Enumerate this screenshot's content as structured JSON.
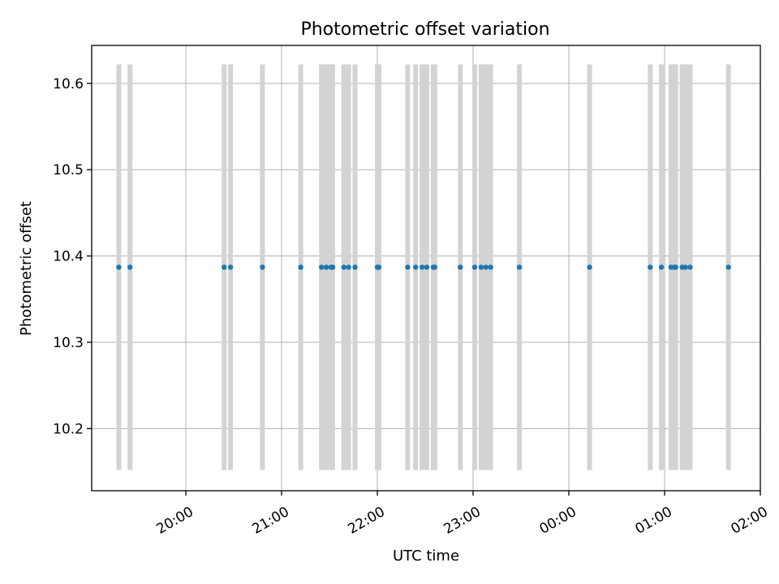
{
  "chart_data": {
    "type": "scatter",
    "title": "Photometric offset variation",
    "xlabel": "UTC time",
    "ylabel": "Photometric offset",
    "x_ticks": [
      "20:00",
      "21:00",
      "22:00",
      "23:00",
      "00:00",
      "01:00",
      "02:00"
    ],
    "y_ticks": [
      "10.2",
      "10.3",
      "10.4",
      "10.5",
      "10.6"
    ],
    "x_range_minutes_from_2000": [
      -59,
      360
    ],
    "ylim": [
      10.128,
      10.644
    ],
    "grid": true,
    "series": [
      {
        "marker_color": "#1f77b4",
        "errorbar_color": "#d3d3d3",
        "points": [
          {
            "t": "19:18",
            "y": 10.387,
            "ylow": 10.152,
            "yhigh": 10.622
          },
          {
            "t": "19:25",
            "y": 10.387,
            "ylow": 10.152,
            "yhigh": 10.622
          },
          {
            "t": "20:24",
            "y": 10.387,
            "ylow": 10.152,
            "yhigh": 10.622
          },
          {
            "t": "20:28",
            "y": 10.387,
            "ylow": 10.152,
            "yhigh": 10.622
          },
          {
            "t": "20:48",
            "y": 10.387,
            "ylow": 10.152,
            "yhigh": 10.622
          },
          {
            "t": "21:12",
            "y": 10.387,
            "ylow": 10.152,
            "yhigh": 10.622
          },
          {
            "t": "21:25",
            "y": 10.387,
            "ylow": 10.152,
            "yhigh": 10.622
          },
          {
            "t": "21:28",
            "y": 10.387,
            "ylow": 10.152,
            "yhigh": 10.622
          },
          {
            "t": "21:31",
            "y": 10.387,
            "ylow": 10.152,
            "yhigh": 10.622
          },
          {
            "t": "21:32",
            "y": 10.387,
            "ylow": 10.152,
            "yhigh": 10.622
          },
          {
            "t": "21:39",
            "y": 10.387,
            "ylow": 10.152,
            "yhigh": 10.622
          },
          {
            "t": "21:42",
            "y": 10.387,
            "ylow": 10.152,
            "yhigh": 10.622
          },
          {
            "t": "21:46",
            "y": 10.387,
            "ylow": 10.152,
            "yhigh": 10.622
          },
          {
            "t": "22:00",
            "y": 10.387,
            "ylow": 10.152,
            "yhigh": 10.622
          },
          {
            "t": "22:01",
            "y": 10.387,
            "ylow": 10.152,
            "yhigh": 10.622
          },
          {
            "t": "22:19",
            "y": 10.387,
            "ylow": 10.152,
            "yhigh": 10.622
          },
          {
            "t": "22:24",
            "y": 10.387,
            "ylow": 10.152,
            "yhigh": 10.622
          },
          {
            "t": "22:28",
            "y": 10.387,
            "ylow": 10.152,
            "yhigh": 10.622
          },
          {
            "t": "22:31",
            "y": 10.387,
            "ylow": 10.152,
            "yhigh": 10.622
          },
          {
            "t": "22:35",
            "y": 10.387,
            "ylow": 10.152,
            "yhigh": 10.622
          },
          {
            "t": "22:36",
            "y": 10.387,
            "ylow": 10.152,
            "yhigh": 10.622
          },
          {
            "t": "22:52",
            "y": 10.387,
            "ylow": 10.152,
            "yhigh": 10.622
          },
          {
            "t": "23:01",
            "y": 10.387,
            "ylow": 10.152,
            "yhigh": 10.622
          },
          {
            "t": "23:05",
            "y": 10.387,
            "ylow": 10.152,
            "yhigh": 10.622
          },
          {
            "t": "23:08",
            "y": 10.387,
            "ylow": 10.152,
            "yhigh": 10.622
          },
          {
            "t": "23:11",
            "y": 10.387,
            "ylow": 10.152,
            "yhigh": 10.622
          },
          {
            "t": "23:29",
            "y": 10.387,
            "ylow": 10.152,
            "yhigh": 10.622
          },
          {
            "t": "00:13",
            "y": 10.387,
            "ylow": 10.152,
            "yhigh": 10.622
          },
          {
            "t": "00:51",
            "y": 10.387,
            "ylow": 10.152,
            "yhigh": 10.622
          },
          {
            "t": "00:58",
            "y": 10.387,
            "ylow": 10.152,
            "yhigh": 10.622
          },
          {
            "t": "01:04",
            "y": 10.387,
            "ylow": 10.152,
            "yhigh": 10.622
          },
          {
            "t": "01:06",
            "y": 10.387,
            "ylow": 10.152,
            "yhigh": 10.622
          },
          {
            "t": "01:07",
            "y": 10.387,
            "ylow": 10.152,
            "yhigh": 10.622
          },
          {
            "t": "01:11",
            "y": 10.387,
            "ylow": 10.152,
            "yhigh": 10.622
          },
          {
            "t": "01:13",
            "y": 10.387,
            "ylow": 10.152,
            "yhigh": 10.622
          },
          {
            "t": "01:16",
            "y": 10.387,
            "ylow": 10.152,
            "yhigh": 10.622
          },
          {
            "t": "01:40",
            "y": 10.387,
            "ylow": 10.152,
            "yhigh": 10.622
          }
        ]
      }
    ]
  }
}
